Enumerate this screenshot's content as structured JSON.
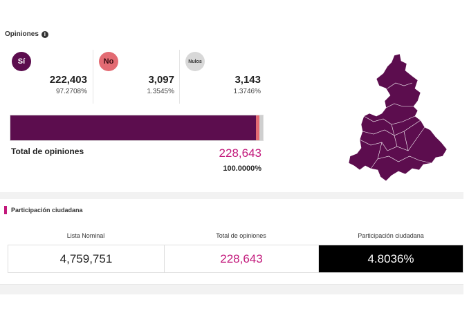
{
  "opiniones": {
    "title": "Opiniones",
    "info_icon": "info-icon",
    "options": [
      {
        "label": "Sí",
        "count": "222,403",
        "pct": "97.2708%",
        "color": "#5c0d4e",
        "share": 0.972708
      },
      {
        "label": "No",
        "count": "3,097",
        "pct": "1.3545%",
        "color": "#e36b73",
        "share": 0.013545
      },
      {
        "label": "Nulos",
        "count": "3,143",
        "pct": "1.3746%",
        "color": "#cfcfcf",
        "share": 0.013746
      }
    ],
    "total_label": "Total de opiniones",
    "total_value": "228,643",
    "total_pct": "100.0000%"
  },
  "map": {
    "fill_color": "#5c0d4e",
    "icon": "state-map-icon"
  },
  "participacion": {
    "title": "Participación ciudadana",
    "accent": "#c2187b",
    "columns": [
      {
        "label": "Lista Nominal",
        "value": "4,759,751"
      },
      {
        "label": "Total de opiniones",
        "value": "228,643"
      },
      {
        "label": "Participación ciudadana",
        "value": "4.8036%"
      }
    ]
  }
}
